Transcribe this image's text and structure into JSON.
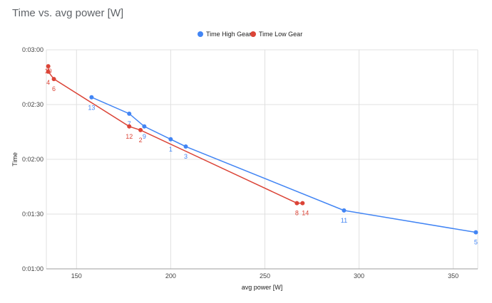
{
  "chart_data": {
    "type": "line",
    "title": "Time vs. avg power [W]",
    "xlabel": "avg power [W]",
    "ylabel": "Time",
    "xlim": [
      134,
      363
    ],
    "ylim": [
      60,
      180
    ],
    "x_ticks": [
      150,
      200,
      250,
      300,
      350
    ],
    "x_tick_labels": [
      "150",
      "200",
      "250",
      "300",
      "350"
    ],
    "y_ticks": [
      60,
      90,
      120,
      150,
      180
    ],
    "y_tick_labels": [
      "0:01:00",
      "0:01:30",
      "0:02:00",
      "0:02:30",
      "0:03:00"
    ],
    "grid": true,
    "legend_position": "top",
    "series": [
      {
        "name": "Time High Gear",
        "color": "#4285f4",
        "points": [
          {
            "x": 158,
            "y": 154,
            "label": "13"
          },
          {
            "x": 178,
            "y": 145,
            "label": "7"
          },
          {
            "x": 186,
            "y": 138,
            "label": "9"
          },
          {
            "x": 200,
            "y": 131,
            "label": "1"
          },
          {
            "x": 208,
            "y": 127,
            "label": "3"
          },
          {
            "x": 292,
            "y": 92,
            "label": "11"
          },
          {
            "x": 362,
            "y": 80,
            "label": "5"
          }
        ]
      },
      {
        "name": "Time Low Gear",
        "color": "#db4437",
        "points": [
          {
            "x": 135,
            "y": 171,
            "label": "10"
          },
          {
            "x": 135,
            "y": 168,
            "label": "4"
          },
          {
            "x": 138,
            "y": 164,
            "label": "6"
          },
          {
            "x": 178,
            "y": 138,
            "label": "12"
          },
          {
            "x": 184,
            "y": 136,
            "label": "2"
          },
          {
            "x": 267,
            "y": 96,
            "label": "8"
          },
          {
            "x": 270,
            "y": 96,
            "label": "14"
          }
        ]
      }
    ]
  }
}
